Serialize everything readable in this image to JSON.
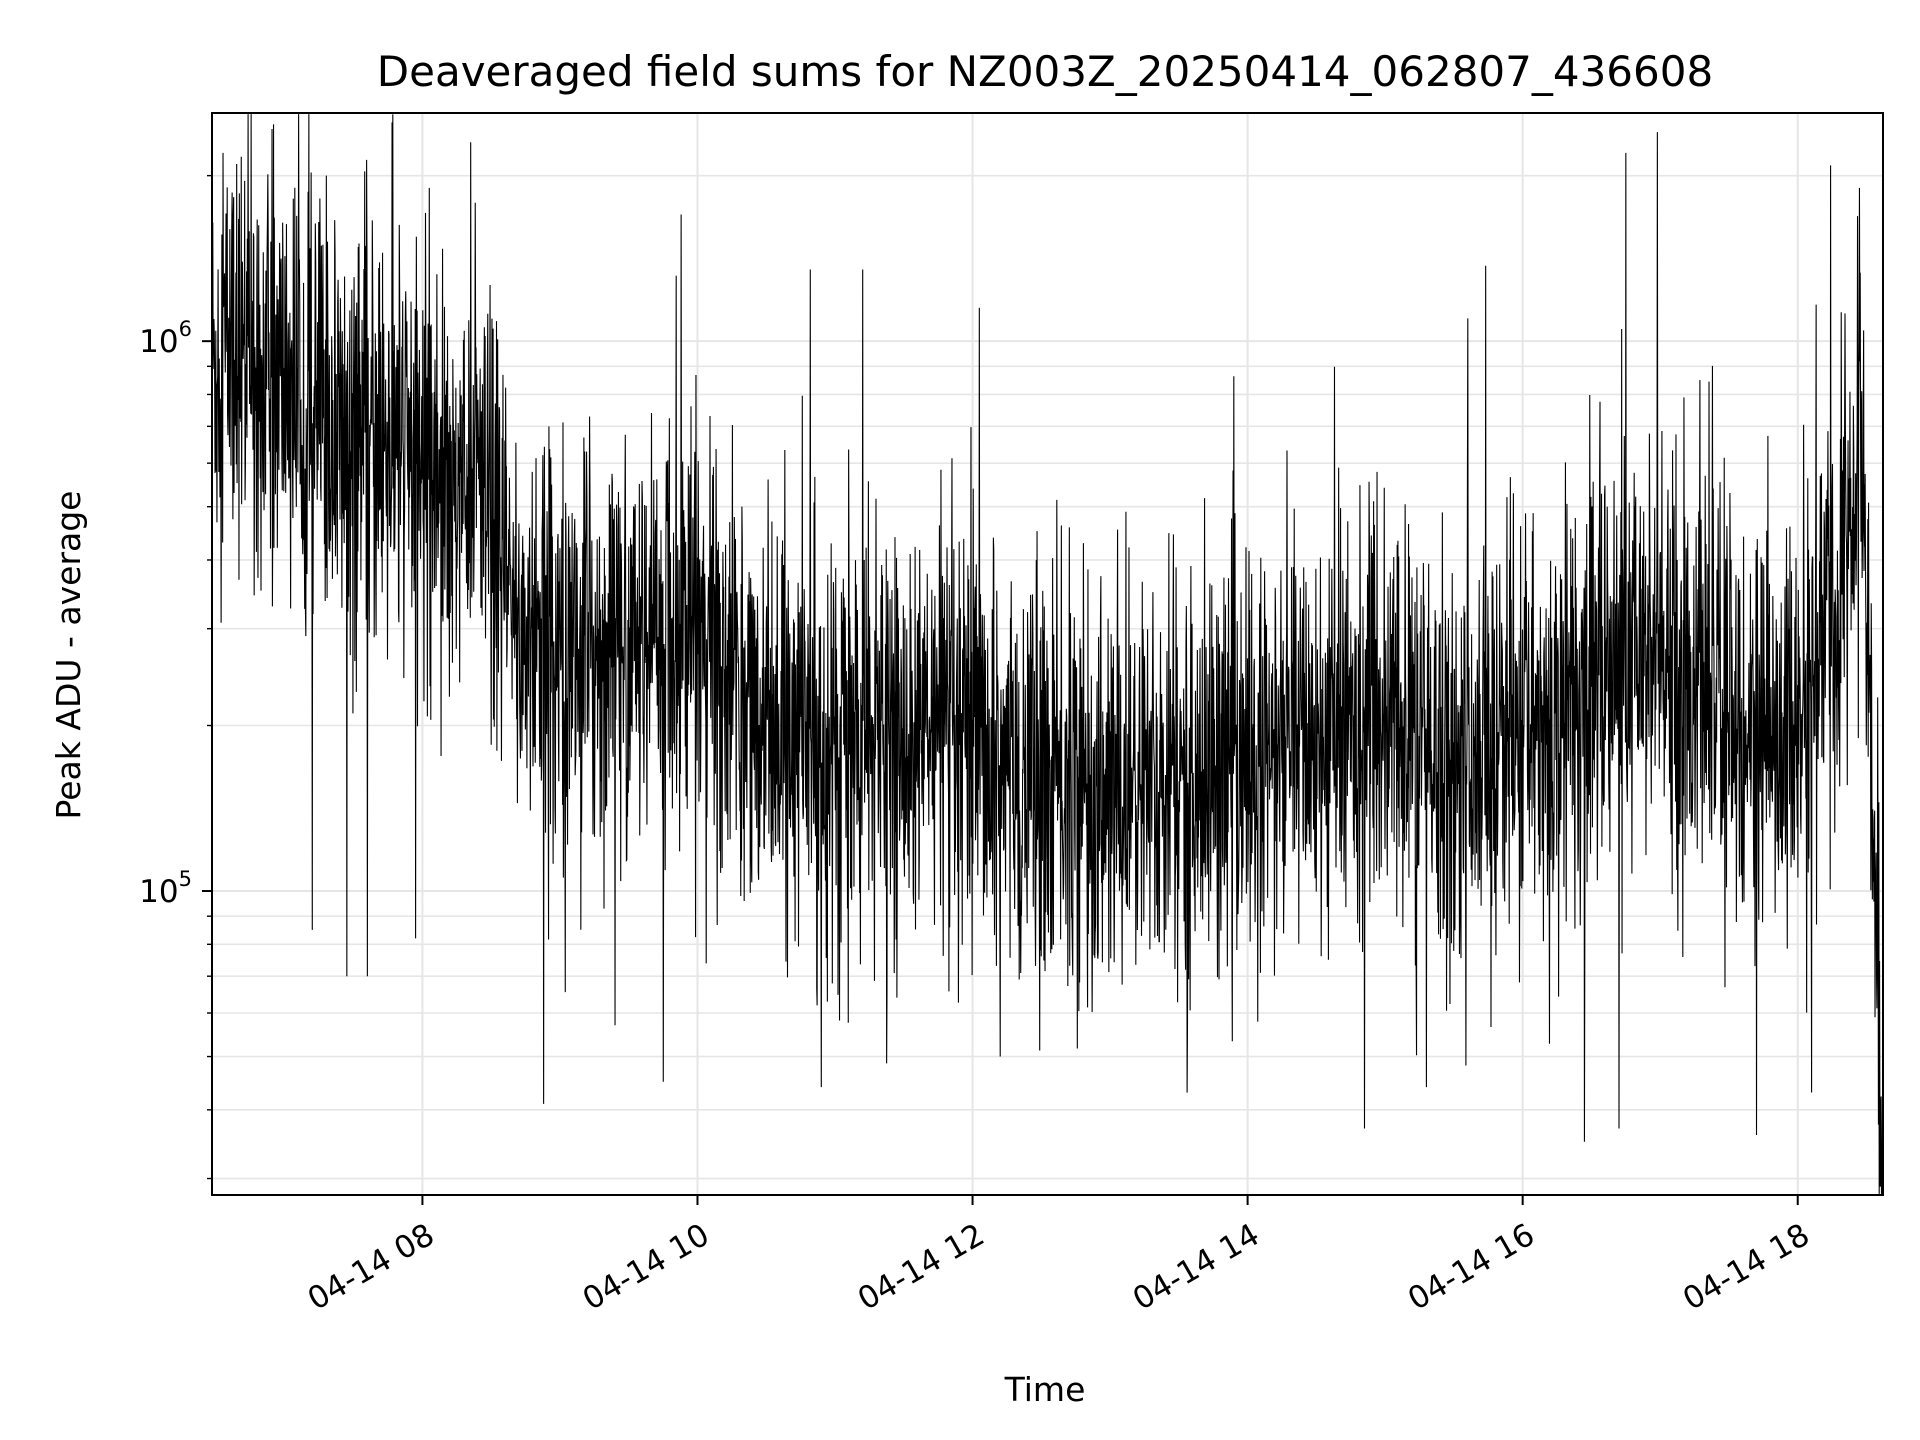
{
  "chart_data": {
    "type": "line",
    "title": "Deaveraged field sums for NZ003Z_20250414_062807_436608",
    "xlabel": "Time",
    "ylabel": "Peak ADU - average",
    "x_unit": "hours (2025-04-14, local time of day)",
    "xlim": [
      6.47,
      18.62
    ],
    "ylim": [
      28000,
      2600000
    ],
    "yscale": "log",
    "grid": true,
    "legend": "none",
    "line_color": "#000000",
    "grid_color": "#e6e6e6",
    "x_ticks": [
      {
        "value": 8,
        "label": "04-14 08"
      },
      {
        "value": 10,
        "label": "04-14 10"
      },
      {
        "value": 12,
        "label": "04-14 12"
      },
      {
        "value": 14,
        "label": "04-14 14"
      },
      {
        "value": 16,
        "label": "04-14 16"
      },
      {
        "value": 18,
        "label": "04-14 18"
      }
    ],
    "y_ticks": [
      {
        "value": 100000,
        "base": "10",
        "exp": "5"
      },
      {
        "value": 1000000,
        "base": "10",
        "exp": "6"
      }
    ],
    "series": [
      {
        "trend": {
          "x": [
            6.47,
            6.6,
            7.0,
            7.5,
            8.0,
            8.4,
            8.7,
            9.0,
            9.5,
            10.0,
            10.5,
            11.0,
            11.5,
            12.0,
            12.5,
            13.0,
            13.5,
            14.0,
            14.5,
            15.0,
            15.5,
            16.0,
            16.5,
            17.0,
            17.5,
            18.0,
            18.2,
            18.4,
            18.45,
            18.5,
            18.55,
            18.62
          ],
          "y": [
            900000,
            1000000,
            850000,
            650000,
            620000,
            560000,
            300000,
            280000,
            270000,
            300000,
            200000,
            180000,
            190000,
            175000,
            160000,
            150000,
            155000,
            170000,
            190000,
            200000,
            175000,
            190000,
            250000,
            260000,
            220000,
            190000,
            300000,
            500000,
            800000,
            350000,
            120000,
            40000
          ]
        },
        "spread_factor": 2.0,
        "lows": [
          {
            "x": 7.2,
            "y": 85000
          },
          {
            "x": 7.45,
            "y": 70000
          },
          {
            "x": 7.6,
            "y": 70000
          },
          {
            "x": 7.95,
            "y": 82000
          },
          {
            "x": 8.88,
            "y": 41000
          },
          {
            "x": 9.4,
            "y": 57000
          },
          {
            "x": 9.75,
            "y": 45000
          },
          {
            "x": 10.9,
            "y": 44000
          },
          {
            "x": 11.45,
            "y": 64000
          },
          {
            "x": 12.2,
            "y": 50000
          },
          {
            "x": 14.85,
            "y": 37000
          },
          {
            "x": 15.3,
            "y": 44000
          },
          {
            "x": 16.45,
            "y": 35000
          },
          {
            "x": 16.7,
            "y": 37000
          },
          {
            "x": 17.7,
            "y": 36000
          },
          {
            "x": 18.1,
            "y": 43000
          },
          {
            "x": 18.6,
            "y": 29000
          }
        ],
        "peaks": [
          {
            "x": 6.55,
            "y": 2200000
          },
          {
            "x": 6.65,
            "y": 2100000
          },
          {
            "x": 7.3,
            "y": 2000000
          },
          {
            "x": 7.78,
            "y": 2500000
          },
          {
            "x": 8.05,
            "y": 1900000
          },
          {
            "x": 8.35,
            "y": 2300000
          },
          {
            "x": 9.88,
            "y": 1700000
          },
          {
            "x": 10.82,
            "y": 1350000
          },
          {
            "x": 11.2,
            "y": 1350000
          },
          {
            "x": 12.05,
            "y": 1150000
          },
          {
            "x": 15.6,
            "y": 1100000
          },
          {
            "x": 16.75,
            "y": 2200000
          },
          {
            "x": 16.98,
            "y": 2400000
          },
          {
            "x": 18.45,
            "y": 1900000
          }
        ]
      }
    ]
  }
}
